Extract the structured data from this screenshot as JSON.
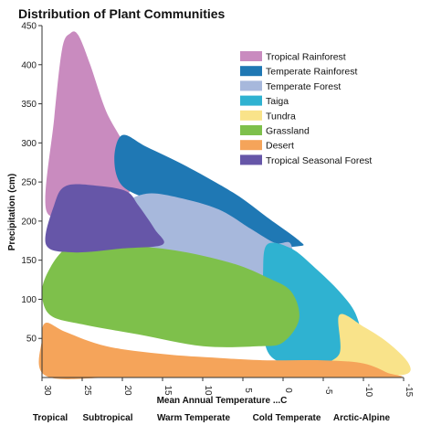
{
  "chart_data": {
    "type": "area",
    "title": "Distribution of Plant Communities",
    "xlabel": "Mean Annual Temperature ...C",
    "ylabel": "Precipitation (cm)",
    "x_reversed": true,
    "xlim": [
      30,
      -15
    ],
    "ylim": [
      0,
      450
    ],
    "x_ticks": [
      "30",
      "25",
      "20",
      "15",
      "10",
      "5",
      "0",
      "-5",
      "-10",
      "-15"
    ],
    "y_ticks": [
      "50",
      "100",
      "150",
      "200",
      "250",
      "300",
      "350",
      "400",
      "450"
    ],
    "grid": false,
    "legend_position": "top-right",
    "zone_labels": [
      "Tropical",
      "Subtropical",
      "Warm Temperate",
      "Cold Temperate",
      "Arctic-Alpine"
    ],
    "series": [
      {
        "name": "Tropical Rainforest",
        "color": "#c98bbf",
        "points": [
          [
            29.5,
            215
          ],
          [
            28.5,
            330
          ],
          [
            27.5,
            420
          ],
          [
            26.5,
            440
          ],
          [
            25.5,
            438
          ],
          [
            24,
            400
          ],
          [
            22,
            340
          ],
          [
            19.5,
            290
          ],
          [
            19,
            240
          ],
          [
            22,
            220
          ],
          [
            26,
            215
          ]
        ]
      },
      {
        "name": "Temperate Rainforest",
        "color": "#1f78b4",
        "points": [
          [
            20,
            310
          ],
          [
            17,
            295
          ],
          [
            12,
            270
          ],
          [
            6,
            235
          ],
          [
            2,
            205
          ],
          [
            -2,
            175
          ],
          [
            -2,
            168
          ],
          [
            3,
            168
          ],
          [
            7,
            190
          ],
          [
            12,
            210
          ],
          [
            16,
            225
          ],
          [
            20,
            245
          ],
          [
            21,
            280
          ]
        ]
      },
      {
        "name": "Temperate Forest",
        "color": "#a7b8dc",
        "points": [
          [
            20,
            220
          ],
          [
            17,
            235
          ],
          [
            13,
            230
          ],
          [
            8,
            215
          ],
          [
            4,
            190
          ],
          [
            1,
            172
          ],
          [
            -1,
            170
          ],
          [
            -1,
            125
          ],
          [
            3,
            110
          ],
          [
            7,
            110
          ],
          [
            12,
            120
          ],
          [
            16,
            130
          ],
          [
            20,
            150
          ],
          [
            21,
            190
          ]
        ]
      },
      {
        "name": "Taiga",
        "color": "#2fb2d1",
        "points": [
          [
            2,
            170
          ],
          [
            -1,
            165
          ],
          [
            -4,
            140
          ],
          [
            -7,
            110
          ],
          [
            -9,
            82
          ],
          [
            -9.5,
            50
          ],
          [
            -7,
            25
          ],
          [
            -3,
            15
          ],
          [
            0,
            18
          ],
          [
            2,
            35
          ],
          [
            2.5,
            80
          ],
          [
            2.5,
            130
          ]
        ]
      },
      {
        "name": "Tundra",
        "color": "#f9e38a",
        "points": [
          [
            -7,
            80
          ],
          [
            -10,
            65
          ],
          [
            -13,
            45
          ],
          [
            -15.5,
            20
          ],
          [
            -15.5,
            5
          ],
          [
            -12,
            3
          ],
          [
            -8,
            8
          ],
          [
            -4,
            12
          ],
          [
            -7,
            30
          ]
        ]
      },
      {
        "name": "Grassland",
        "color": "#7ec04b",
        "points": [
          [
            30,
            110
          ],
          [
            29,
            140
          ],
          [
            27,
            165
          ],
          [
            24,
            172
          ],
          [
            18,
            168
          ],
          [
            12,
            160
          ],
          [
            6,
            145
          ],
          [
            2,
            128
          ],
          [
            -1,
            110
          ],
          [
            -2,
            75
          ],
          [
            0,
            45
          ],
          [
            3,
            40
          ],
          [
            10,
            40
          ],
          [
            18,
            55
          ],
          [
            25,
            68
          ],
          [
            29,
            80
          ]
        ]
      },
      {
        "name": "Desert",
        "color": "#f5a45a",
        "points": [
          [
            30,
            50
          ],
          [
            29.5,
            70
          ],
          [
            27,
            58
          ],
          [
            22,
            40
          ],
          [
            15,
            30
          ],
          [
            8,
            25
          ],
          [
            2,
            22
          ],
          [
            -5,
            22
          ],
          [
            -10,
            18
          ],
          [
            -13,
            6
          ],
          [
            -14,
            0
          ],
          [
            0,
            0
          ],
          [
            20,
            0
          ],
          [
            29.5,
            2
          ]
        ]
      },
      {
        "name": "Tropical Seasonal Forest",
        "color": "#6656a8",
        "points": [
          [
            29.5,
            170
          ],
          [
            28.5,
            220
          ],
          [
            27,
            245
          ],
          [
            23,
            245
          ],
          [
            19.5,
            238
          ],
          [
            18,
            220
          ],
          [
            16,
            190
          ],
          [
            15,
            170
          ],
          [
            20,
            165
          ],
          [
            26,
            160
          ]
        ]
      }
    ]
  }
}
